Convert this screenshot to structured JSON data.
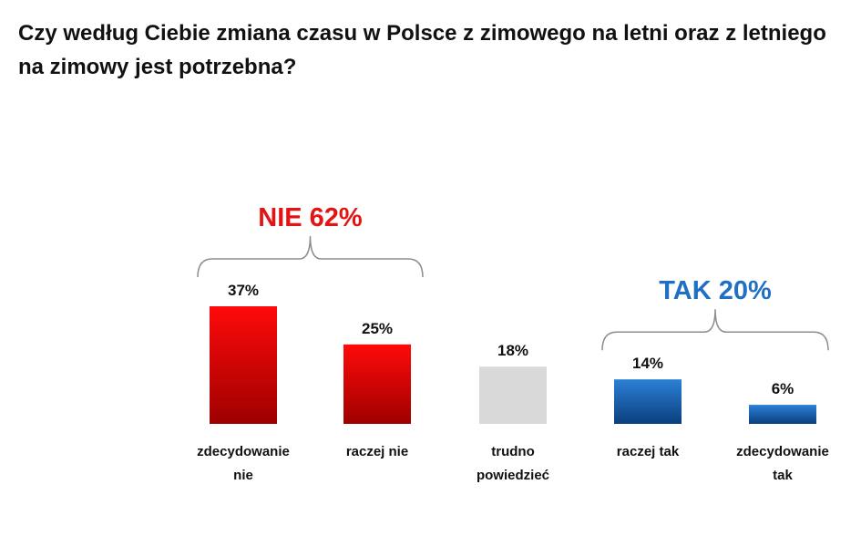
{
  "chart_data": {
    "type": "bar",
    "title": "Czy według Ciebie zmiana czasu w Polsce z zimowego na letni oraz z letniego na zimowy jest potrzebna?",
    "categories": [
      [
        "zdecydowanie",
        "nie"
      ],
      [
        "raczej nie"
      ],
      [
        "trudno",
        "powiedzieć"
      ],
      [
        "raczej tak"
      ],
      [
        "zdecydowanie",
        "tak"
      ]
    ],
    "values": [
      37,
      25,
      18,
      14,
      6
    ],
    "value_labels": [
      "37%",
      "25%",
      "18%",
      "14%",
      "6%"
    ],
    "bar_colors": [
      "#e30000",
      "#e30000",
      "#d9d9d9",
      "#1f6fc4",
      "#1f6fc4"
    ],
    "ylim": [
      0,
      40
    ],
    "grid": false,
    "groups": [
      {
        "label": "NIE 62%",
        "color": "#e31414",
        "members": [
          0,
          1
        ]
      },
      {
        "label": "TAK 20%",
        "color": "#1f6fc4",
        "members": [
          3,
          4
        ]
      }
    ]
  }
}
